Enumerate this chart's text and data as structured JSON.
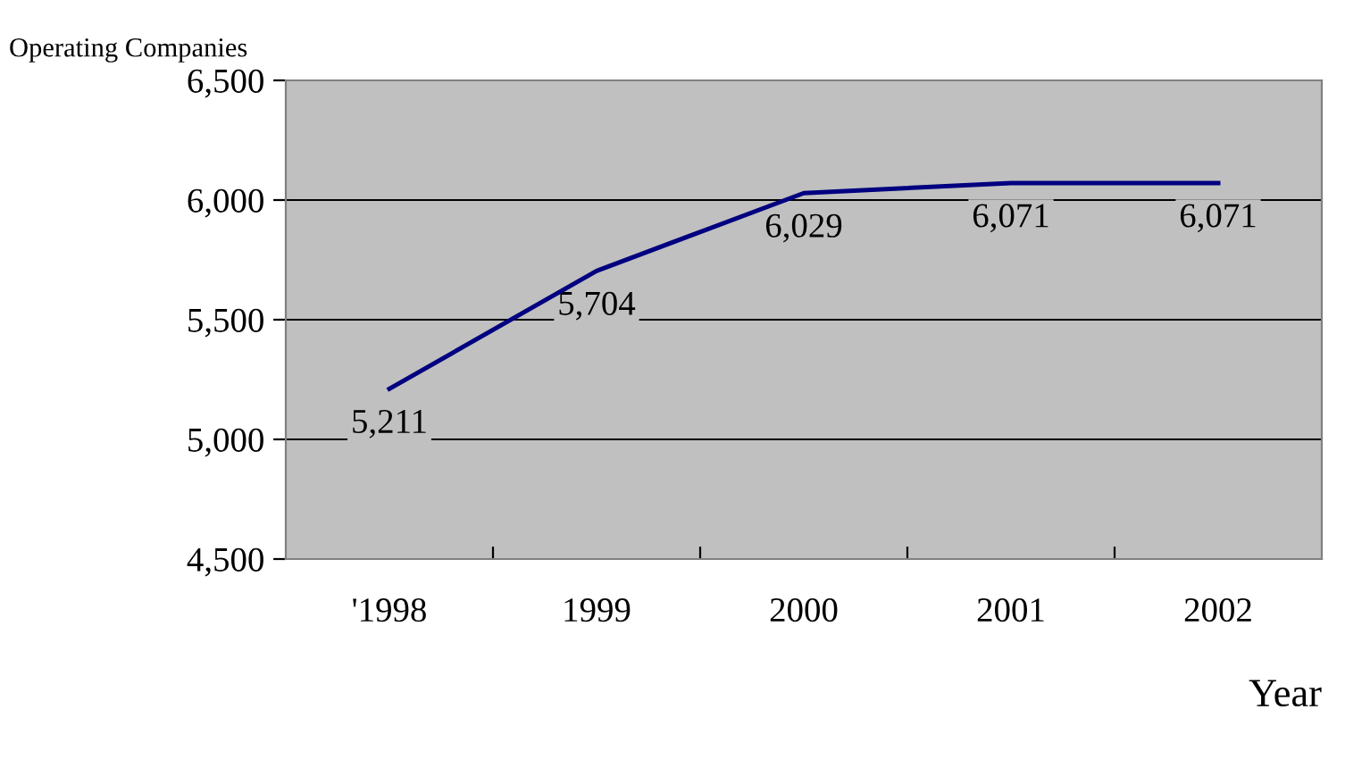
{
  "chart_data": {
    "type": "line",
    "ylabel": "Operating Companies",
    "xlabel": "Year",
    "categories": [
      "'1998",
      "1999",
      "2000",
      "2001",
      "2002"
    ],
    "series": [
      {
        "color": "#000080",
        "values": [
          5211,
          5704,
          6029,
          6071,
          6071
        ]
      }
    ],
    "value_labels": [
      "5,211",
      "5,704",
      "6,029",
      "6,071",
      "6,071"
    ],
    "ylim": [
      4500,
      6500
    ],
    "yticks": [
      {
        "value": 4500,
        "label": "4,500"
      },
      {
        "value": 5000,
        "label": "5,000"
      },
      {
        "value": 5500,
        "label": "5,500"
      },
      {
        "value": 6000,
        "label": "6,000"
      },
      {
        "value": 6500,
        "label": "6,500"
      }
    ],
    "grid": "y",
    "marker": "none",
    "line_style": "solid"
  }
}
